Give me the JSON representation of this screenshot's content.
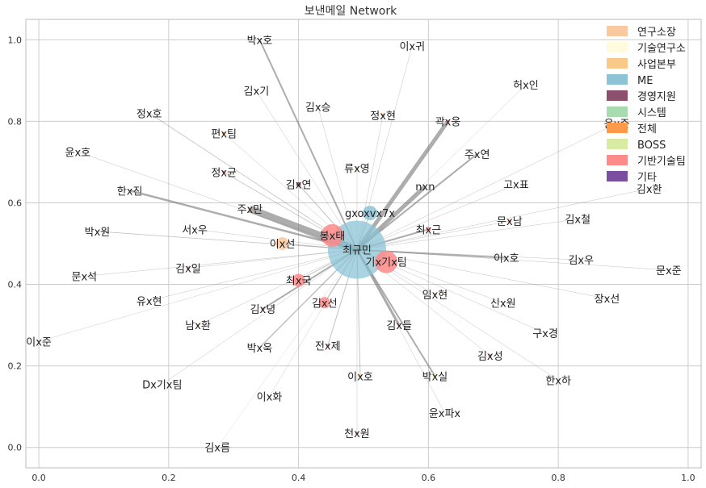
{
  "chart_data": {
    "type": "network",
    "title": "보낸메일 Network",
    "xlim": [
      -0.02,
      1.02
    ],
    "ylim": [
      -0.05,
      1.05
    ],
    "xticks": [
      0.0,
      0.2,
      0.4,
      0.6,
      0.8,
      1.0
    ],
    "yticks": [
      0.0,
      0.2,
      0.4,
      0.6,
      0.8,
      1.0
    ],
    "xtick_labels": [
      "0.0",
      "0.2",
      "0.4",
      "0.6",
      "0.8",
      "1.0"
    ],
    "ytick_labels": [
      "0.0",
      "0.2",
      "0.4",
      "0.6",
      "0.8",
      "1.0"
    ],
    "grid": true,
    "legend": {
      "placement": "top-right",
      "entries": [
        {
          "name": "연구소장",
          "color": "#f9c9a0"
        },
        {
          "name": "기술연구소",
          "color": "#fffbdc"
        },
        {
          "name": "사업본부",
          "color": "#f9c98a"
        },
        {
          "name": "ME",
          "color": "#8cc4d6"
        },
        {
          "name": "경영지원",
          "color": "#8c4f6e"
        },
        {
          "name": "시스템",
          "color": "#a8dcb0"
        },
        {
          "name": "전체",
          "color": "#ff9a4a"
        },
        {
          "name": "BOSS",
          "color": "#d8eba2"
        },
        {
          "name": "기반기술팀",
          "color": "#ff8a8a"
        },
        {
          "name": "기타",
          "color": "#7b4ea0"
        }
      ]
    },
    "center": "최규민",
    "nodes": [
      {
        "label": "최규민",
        "x": 0.49,
        "y": 0.485,
        "size": 36,
        "group": "ME"
      },
      {
        "label": "gxoxvx7x",
        "x": 0.51,
        "y": 0.575,
        "size": 9,
        "group": "ME"
      },
      {
        "label": "봉x태",
        "x": 0.452,
        "y": 0.52,
        "size": 14,
        "group": "기반기술팀"
      },
      {
        "label": "기x기x팀",
        "x": 0.535,
        "y": 0.455,
        "size": 14,
        "group": "기반기술팀"
      },
      {
        "label": "최x국",
        "x": 0.4,
        "y": 0.41,
        "size": 8,
        "group": "기반기술팀"
      },
      {
        "label": "김x선",
        "x": 0.44,
        "y": 0.355,
        "size": 7,
        "group": "기반기술팀"
      },
      {
        "label": "이x선",
        "x": 0.375,
        "y": 0.5,
        "size": 8,
        "group": "연구소장"
      },
      {
        "label": "박x호",
        "x": 0.34,
        "y": 1.0,
        "size": 0,
        "group": "기타"
      },
      {
        "label": "이x귀",
        "x": 0.575,
        "y": 0.985,
        "size": 0,
        "group": "기타"
      },
      {
        "label": "허x인",
        "x": 0.75,
        "y": 0.89,
        "size": 0,
        "group": "기타"
      },
      {
        "label": "김x기",
        "x": 0.335,
        "y": 0.875,
        "size": 0,
        "group": "기타"
      },
      {
        "label": "김x승",
        "x": 0.43,
        "y": 0.835,
        "size": 0,
        "group": "기타"
      },
      {
        "label": "정x호",
        "x": 0.17,
        "y": 0.82,
        "size": 0,
        "group": "기타"
      },
      {
        "label": "정x현",
        "x": 0.53,
        "y": 0.815,
        "size": 2,
        "group": "전체"
      },
      {
        "label": "곽x웅",
        "x": 0.63,
        "y": 0.8,
        "size": 2,
        "group": "기반기술팀"
      },
      {
        "label": "윤x준",
        "x": 0.89,
        "y": 0.795,
        "size": 0,
        "group": "기타"
      },
      {
        "label": "편x팀",
        "x": 0.285,
        "y": 0.77,
        "size": 2,
        "group": "전체"
      },
      {
        "label": "윤x호",
        "x": 0.06,
        "y": 0.725,
        "size": 0,
        "group": "기타"
      },
      {
        "label": "주x연",
        "x": 0.675,
        "y": 0.72,
        "size": 0,
        "group": "기타"
      },
      {
        "label": "류x영",
        "x": 0.49,
        "y": 0.685,
        "size": 2,
        "group": "사업본부"
      },
      {
        "label": "정x균",
        "x": 0.285,
        "y": 0.675,
        "size": 2,
        "group": "기반기술팀"
      },
      {
        "label": "김x연",
        "x": 0.4,
        "y": 0.645,
        "size": 3,
        "group": "경영지원"
      },
      {
        "label": "고x표",
        "x": 0.735,
        "y": 0.645,
        "size": 0,
        "group": "기타"
      },
      {
        "label": "nxn",
        "x": 0.595,
        "y": 0.64,
        "size": 0,
        "group": "기타"
      },
      {
        "label": "한x진",
        "x": 0.14,
        "y": 0.63,
        "size": 0,
        "group": "기타"
      },
      {
        "label": "김x환",
        "x": 0.94,
        "y": 0.635,
        "size": 0,
        "group": "기타"
      },
      {
        "label": "주x만",
        "x": 0.325,
        "y": 0.585,
        "size": 2,
        "group": "전체"
      },
      {
        "label": "문x남",
        "x": 0.725,
        "y": 0.555,
        "size": 2,
        "group": "기반기술팀"
      },
      {
        "label": "김x철",
        "x": 0.83,
        "y": 0.56,
        "size": 0,
        "group": "기타"
      },
      {
        "label": "최x근",
        "x": 0.6,
        "y": 0.535,
        "size": 3,
        "group": "기반기술팀"
      },
      {
        "label": "서x우",
        "x": 0.24,
        "y": 0.535,
        "size": 0,
        "group": "기타"
      },
      {
        "label": "박x원",
        "x": 0.09,
        "y": 0.53,
        "size": 0,
        "group": "기타"
      },
      {
        "label": "이x호",
        "x": 0.72,
        "y": 0.465,
        "size": 0,
        "group": "기타"
      },
      {
        "label": "김x우",
        "x": 0.835,
        "y": 0.46,
        "size": 0,
        "group": "기타"
      },
      {
        "label": "김x일",
        "x": 0.23,
        "y": 0.44,
        "size": 2,
        "group": "기반기술팀"
      },
      {
        "label": "문x준",
        "x": 0.97,
        "y": 0.435,
        "size": 0,
        "group": "기타"
      },
      {
        "label": "문x석",
        "x": 0.07,
        "y": 0.42,
        "size": 0,
        "group": "기타"
      },
      {
        "label": "임x현",
        "x": 0.61,
        "y": 0.375,
        "size": 2,
        "group": "사업본부"
      },
      {
        "label": "장x선",
        "x": 0.875,
        "y": 0.365,
        "size": 0,
        "group": "기타"
      },
      {
        "label": "유x현",
        "x": 0.17,
        "y": 0.36,
        "size": 0,
        "group": "기타"
      },
      {
        "label": "신x원",
        "x": 0.715,
        "y": 0.355,
        "size": 0,
        "group": "기타"
      },
      {
        "label": "김x녕",
        "x": 0.345,
        "y": 0.34,
        "size": 2,
        "group": "기반기술팀"
      },
      {
        "label": "김x들",
        "x": 0.555,
        "y": 0.3,
        "size": 2,
        "group": "사업본부"
      },
      {
        "label": "남x환",
        "x": 0.245,
        "y": 0.3,
        "size": 2,
        "group": "사업본부"
      },
      {
        "label": "구x경",
        "x": 0.78,
        "y": 0.28,
        "size": 0,
        "group": "기타"
      },
      {
        "label": "이x준",
        "x": 0.0,
        "y": 0.26,
        "size": 0,
        "group": "기타"
      },
      {
        "label": "전x제",
        "x": 0.445,
        "y": 0.25,
        "size": 2,
        "group": "기반기술팀"
      },
      {
        "label": "박x욱",
        "x": 0.34,
        "y": 0.245,
        "size": 0,
        "group": "기타"
      },
      {
        "label": "김x성",
        "x": 0.695,
        "y": 0.225,
        "size": 2,
        "group": "기반기술팀"
      },
      {
        "label": "이x호",
        "x": 0.495,
        "y": 0.175,
        "size": 2,
        "group": "사업본부"
      },
      {
        "label": "박x실",
        "x": 0.61,
        "y": 0.175,
        "size": 2,
        "group": "사업본부"
      },
      {
        "label": "한x하",
        "x": 0.8,
        "y": 0.165,
        "size": 0,
        "group": "기타"
      },
      {
        "label": "Dx기x팀",
        "x": 0.19,
        "y": 0.155,
        "size": 0,
        "group": "기타"
      },
      {
        "label": "이x화",
        "x": 0.355,
        "y": 0.125,
        "size": 0,
        "group": "기타"
      },
      {
        "label": "윤x파x",
        "x": 0.625,
        "y": 0.085,
        "size": 0,
        "group": "기타"
      },
      {
        "label": "천x원",
        "x": 0.49,
        "y": 0.035,
        "size": 2,
        "group": "기반기술팀"
      },
      {
        "label": "김x름",
        "x": 0.275,
        "y": 0.0,
        "size": 0,
        "group": "기타"
      }
    ],
    "edges": [
      {
        "target": "박x호",
        "weight": 2
      },
      {
        "target": "이x귀",
        "weight": 0.5
      },
      {
        "target": "허x인",
        "weight": 0.4
      },
      {
        "target": "김x기",
        "weight": 0.5
      },
      {
        "target": "김x승",
        "weight": 0.5
      },
      {
        "target": "정x호",
        "weight": 0.8
      },
      {
        "target": "정x현",
        "weight": 0.5
      },
      {
        "target": "곽x웅",
        "weight": 5
      },
      {
        "target": "윤x준",
        "weight": 0.5
      },
      {
        "target": "편x팀",
        "weight": 0.5
      },
      {
        "target": "윤x호",
        "weight": 0.5
      },
      {
        "target": "주x연",
        "weight": 2
      },
      {
        "target": "류x영",
        "weight": 0.5
      },
      {
        "target": "정x균",
        "weight": 0.8
      },
      {
        "target": "김x연",
        "weight": 1
      },
      {
        "target": "고x표",
        "weight": 0.5
      },
      {
        "target": "nxn",
        "weight": 5
      },
      {
        "target": "한x진",
        "weight": 2.5
      },
      {
        "target": "김x환",
        "weight": 0.5
      },
      {
        "target": "주x만",
        "weight": 9
      },
      {
        "target": "문x남",
        "weight": 0.5
      },
      {
        "target": "김x철",
        "weight": 0.5
      },
      {
        "target": "최x근",
        "weight": 2
      },
      {
        "target": "서x우",
        "weight": 0.5
      },
      {
        "target": "박x원",
        "weight": 0.8
      },
      {
        "target": "이x호",
        "weight": 2
      },
      {
        "target": "김x우",
        "weight": 0.5
      },
      {
        "target": "김x일",
        "weight": 0.5
      },
      {
        "target": "문x준",
        "weight": 0.5
      },
      {
        "target": "문x석",
        "weight": 0.5
      },
      {
        "target": "임x현",
        "weight": 0.5
      },
      {
        "target": "장x선",
        "weight": 0.5
      },
      {
        "target": "유x현",
        "weight": 0.5
      },
      {
        "target": "신x원",
        "weight": 0.5
      },
      {
        "target": "김x녕",
        "weight": 2
      },
      {
        "target": "김x들",
        "weight": 3
      },
      {
        "target": "남x환",
        "weight": 0.5
      },
      {
        "target": "구x경",
        "weight": 0.5
      },
      {
        "target": "이x준",
        "weight": 0.4
      },
      {
        "target": "전x제",
        "weight": 1
      },
      {
        "target": "박x욱",
        "weight": 1.5
      },
      {
        "target": "김x성",
        "weight": 0.5
      },
      {
        "target": "이x호",
        "weight": 1
      },
      {
        "target": "박x실",
        "weight": 2
      },
      {
        "target": "한x하",
        "weight": 0.5
      },
      {
        "target": "Dx기x팀",
        "weight": 0.5
      },
      {
        "target": "이x화",
        "weight": 0.4
      },
      {
        "target": "윤x파x",
        "weight": 0.5
      },
      {
        "target": "천x원",
        "weight": 0.5
      },
      {
        "target": "김x름",
        "weight": 0.3
      },
      {
        "target": "봉x태",
        "weight": 1
      },
      {
        "target": "기x기x팀",
        "weight": 1
      },
      {
        "target": "gxoxvx7x",
        "weight": 1
      },
      {
        "target": "이x선",
        "weight": 1
      },
      {
        "target": "최x국",
        "weight": 1
      },
      {
        "target": "김x선",
        "weight": 1
      }
    ]
  }
}
